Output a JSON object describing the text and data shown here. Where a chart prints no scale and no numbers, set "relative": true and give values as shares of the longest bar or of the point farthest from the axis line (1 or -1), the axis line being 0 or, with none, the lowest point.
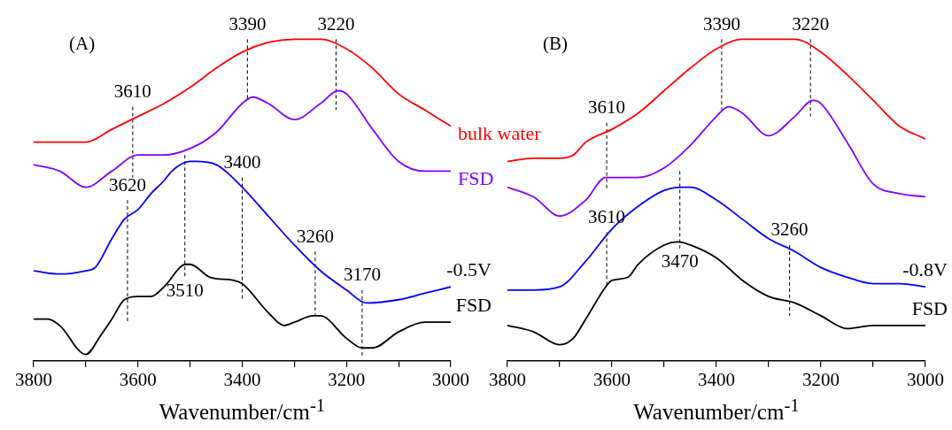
{
  "chart_data": [
    {
      "type": "line",
      "title": "(A)",
      "xlabel": "Wavenumber/cm$^{-1}$",
      "relative": true,
      "marker": "none",
      "xlim": [
        3800,
        3000
      ],
      "xticks": [
        3800,
        {
          "value": 3700,
          "label": null
        },
        3600,
        {
          "value": 3500,
          "label": null
        },
        3400,
        {
          "value": 3300,
          "label": null
        },
        3200,
        {
          "value": 3100,
          "label": null
        },
        3000
      ],
      "series": [
        {
          "name": "bulk water",
          "color": "#ff0000",
          "x": [
            3800,
            3750,
            3700,
            3650,
            3600,
            3550,
            3500,
            3450,
            3400,
            3350,
            3300,
            3250,
            3200,
            3150,
            3100,
            3050,
            3000
          ],
          "values": [
            0.68,
            0.68,
            0.68,
            0.72,
            0.76,
            0.8,
            0.85,
            0.91,
            0.96,
            0.99,
            1.0,
            1.0,
            0.97,
            0.91,
            0.83,
            0.78,
            0.73
          ]
        },
        {
          "name": "FSD",
          "color": "#8000ff",
          "x": [
            3800,
            3750,
            3700,
            3650,
            3600,
            3550,
            3500,
            3450,
            3400,
            3380,
            3350,
            3300,
            3250,
            3216,
            3200,
            3150,
            3100,
            3050,
            3000
          ],
          "values": [
            0.61,
            0.59,
            0.54,
            0.59,
            0.64,
            0.64,
            0.66,
            0.71,
            0.8,
            0.82,
            0.8,
            0.75,
            0.8,
            0.84,
            0.83,
            0.72,
            0.62,
            0.59,
            0.59
          ]
        },
        {
          "name": "-0.5V",
          "color": "#0000ff",
          "x": [
            3800,
            3750,
            3700,
            3682,
            3650,
            3626,
            3600,
            3575,
            3550,
            3535,
            3500,
            3490,
            3450,
            3400,
            3350,
            3300,
            3250,
            3200,
            3162,
            3100,
            3050,
            3000
          ],
          "values": [
            0.28,
            0.27,
            0.28,
            0.29,
            0.38,
            0.44,
            0.47,
            0.52,
            0.56,
            0.59,
            0.62,
            0.62,
            0.61,
            0.54,
            0.45,
            0.36,
            0.28,
            0.22,
            0.18,
            0.19,
            0.21,
            0.23
          ]
        },
        {
          "name": "FSD",
          "color": "#000000",
          "x": [
            3800,
            3773,
            3750,
            3700,
            3671,
            3650,
            3626,
            3600,
            3575,
            3550,
            3508,
            3500,
            3462,
            3416,
            3400,
            3350,
            3320,
            3300,
            3264,
            3250,
            3200,
            3170,
            3150,
            3100,
            3050,
            3000
          ],
          "values": [
            0.13,
            0.13,
            0.11,
            0.02,
            0.08,
            0.13,
            0.19,
            0.2,
            0.2,
            0.23,
            0.3,
            0.3,
            0.26,
            0.25,
            0.24,
            0.15,
            0.11,
            0.12,
            0.14,
            0.14,
            0.07,
            0.04,
            0.04,
            0.09,
            0.12,
            0.12
          ]
        },
        {
          "type": "line",
          "color": "#000000",
          "line_style": "dashed",
          "x": [
            3390,
            3390
          ],
          "values": [
            1.0,
            0.81
          ]
        },
        {
          "type": "line",
          "color": "#000000",
          "line_style": "dashed",
          "x": [
            3220,
            3220
          ],
          "values": [
            1.0,
            0.78
          ]
        },
        {
          "type": "line",
          "color": "#000000",
          "line_style": "dashed",
          "x": [
            3610,
            3610
          ],
          "values": [
            0.79,
            0.57
          ]
        },
        {
          "type": "line",
          "color": "#000000",
          "line_style": "dashed",
          "x": [
            3620,
            3620
          ],
          "values": [
            0.5,
            0.12
          ]
        },
        {
          "type": "line",
          "color": "#000000",
          "line_style": "dashed",
          "x": [
            3510,
            3510
          ],
          "values": [
            0.64,
            0.26
          ]
        },
        {
          "type": "line",
          "color": "#000000",
          "line_style": "dashed",
          "x": [
            3400,
            3400
          ],
          "values": [
            0.57,
            0.19
          ]
        },
        {
          "type": "line",
          "color": "#000000",
          "line_style": "dashed",
          "x": [
            3260,
            3260
          ],
          "values": [
            0.34,
            0.14
          ]
        },
        {
          "type": "line",
          "color": "#000000",
          "line_style": "dashed",
          "x": [
            3170,
            3170
          ],
          "values": [
            0.22,
            0.01
          ]
        }
      ],
      "annotations": [
        {
          "text": "3390",
          "x": 3390,
          "y": 1.0
        },
        {
          "text": "3220",
          "x": 3220,
          "y": 1.0
        },
        {
          "text": "3610",
          "x": 3610,
          "y": 0.79
        },
        {
          "text": "3620",
          "x": 3620,
          "y": 0.5
        },
        {
          "text": "3510",
          "x": 3510,
          "y": 0.26
        },
        {
          "text": "3400",
          "x": 3400,
          "y": 0.57
        },
        {
          "text": "3260",
          "x": 3260,
          "y": 0.34
        },
        {
          "text": "3170",
          "x": 3170,
          "y": 0.22
        }
      ]
    },
    {
      "type": "line",
      "title": "(B)",
      "xlabel": "Wavenumber/cm$^{-1}$",
      "relative": true,
      "marker": "none",
      "xlim": [
        3800,
        3000
      ],
      "xticks": [
        3800,
        {
          "value": 3700,
          "label": null
        },
        3600,
        {
          "value": 3500,
          "label": null
        },
        3400,
        {
          "value": 3300,
          "label": null
        },
        3200,
        {
          "value": 3100,
          "label": null
        },
        3000
      ],
      "series": [
        {
          "color": "#ff0000",
          "x": [
            3800,
            3750,
            3700,
            3674,
            3650,
            3600,
            3550,
            3500,
            3450,
            3400,
            3350,
            3300,
            3250,
            3200,
            3150,
            3100,
            3050,
            3000
          ],
          "values": [
            0.62,
            0.63,
            0.63,
            0.64,
            0.68,
            0.72,
            0.77,
            0.84,
            0.91,
            0.97,
            1.0,
            1.0,
            1.0,
            0.96,
            0.89,
            0.81,
            0.73,
            0.69
          ]
        },
        {
          "color": "#8000ff",
          "x": [
            3800,
            3750,
            3700,
            3650,
            3612,
            3600,
            3550,
            3500,
            3450,
            3400,
            3377,
            3350,
            3300,
            3250,
            3215,
            3200,
            3150,
            3100,
            3050,
            3000
          ],
          "values": [
            0.54,
            0.51,
            0.45,
            0.5,
            0.57,
            0.57,
            0.57,
            0.6,
            0.67,
            0.76,
            0.79,
            0.77,
            0.7,
            0.76,
            0.81,
            0.8,
            0.68,
            0.55,
            0.52,
            0.51
          ]
        },
        {
          "name": "-0.8V",
          "color": "#0000ff",
          "x": [
            3800,
            3750,
            3700,
            3650,
            3600,
            3550,
            3500,
            3465,
            3450,
            3400,
            3350,
            3300,
            3250,
            3200,
            3150,
            3100,
            3050,
            3000
          ],
          "values": [
            0.22,
            0.22,
            0.23,
            0.31,
            0.41,
            0.48,
            0.53,
            0.54,
            0.54,
            0.5,
            0.44,
            0.38,
            0.34,
            0.29,
            0.26,
            0.24,
            0.24,
            0.23
          ]
        },
        {
          "name": "FSD",
          "color": "#000000",
          "x": [
            3800,
            3750,
            3700,
            3674,
            3650,
            3612,
            3600,
            3569,
            3550,
            3500,
            3473,
            3450,
            3400,
            3350,
            3300,
            3250,
            3200,
            3150,
            3100,
            3050,
            3000
          ],
          "values": [
            0.11,
            0.09,
            0.05,
            0.07,
            0.13,
            0.23,
            0.25,
            0.26,
            0.3,
            0.36,
            0.37,
            0.36,
            0.32,
            0.25,
            0.2,
            0.18,
            0.14,
            0.1,
            0.11,
            0.11,
            0.11
          ]
        },
        {
          "type": "line",
          "color": "#000000",
          "line_style": "dashed",
          "x": [
            3390,
            3390
          ],
          "values": [
            1.0,
            0.78
          ]
        },
        {
          "type": "line",
          "color": "#000000",
          "line_style": "dashed",
          "x": [
            3220,
            3220
          ],
          "values": [
            1.0,
            0.76
          ]
        },
        {
          "type": "line",
          "color": "#000000",
          "line_style": "dashed",
          "x": [
            3610,
            3610
          ],
          "values": [
            0.74,
            0.53
          ]
        },
        {
          "type": "line",
          "color": "#000000",
          "line_style": "dashed",
          "x": [
            3610,
            3610
          ],
          "values": [
            0.4,
            0.23
          ]
        },
        {
          "type": "line",
          "color": "#000000",
          "line_style": "dashed",
          "x": [
            3470,
            3470
          ],
          "values": [
            0.59,
            0.35
          ]
        },
        {
          "type": "line",
          "color": "#000000",
          "line_style": "dashed",
          "x": [
            3260,
            3260
          ],
          "values": [
            0.36,
            0.14
          ]
        }
      ],
      "annotations": [
        {
          "text": "3390",
          "x": 3390,
          "y": 1.0
        },
        {
          "text": "3220",
          "x": 3220,
          "y": 1.0
        },
        {
          "text": "3610",
          "x": 3610,
          "y": 0.74
        },
        {
          "text": "3610",
          "x": 3610,
          "y": 0.4
        },
        {
          "text": "3470",
          "x": 3470,
          "y": 0.35
        },
        {
          "text": "3260",
          "x": 3260,
          "y": 0.36
        }
      ]
    }
  ]
}
